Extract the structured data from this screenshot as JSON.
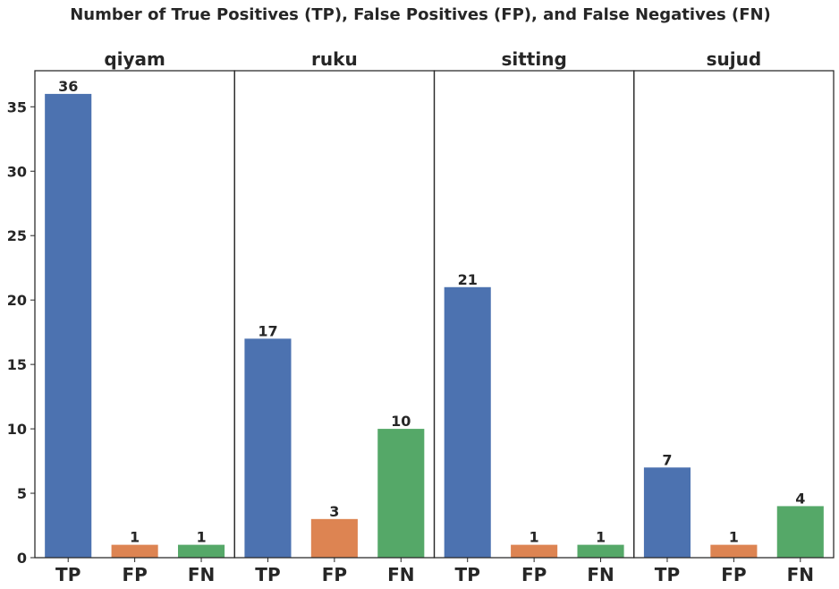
{
  "chart_data": {
    "type": "bar",
    "title": "Number of True Positives (TP), False Positives (FP), and False Negatives (FN)",
    "categories": [
      "TP",
      "FP",
      "FN"
    ],
    "colors": {
      "TP": "#4c72b0",
      "FP": "#dd8452",
      "FN": "#55a868"
    },
    "ylim": [
      0,
      37.8
    ],
    "yticks": [
      0,
      5,
      10,
      15,
      20,
      25,
      30,
      35
    ],
    "shared_y": true,
    "grid": false,
    "panels": [
      {
        "title": "qiyam",
        "values": [
          36,
          1,
          1
        ]
      },
      {
        "title": "ruku",
        "values": [
          17,
          3,
          10
        ]
      },
      {
        "title": "sitting",
        "values": [
          21,
          1,
          1
        ]
      },
      {
        "title": "sujud",
        "values": [
          7,
          1,
          4
        ]
      }
    ]
  }
}
